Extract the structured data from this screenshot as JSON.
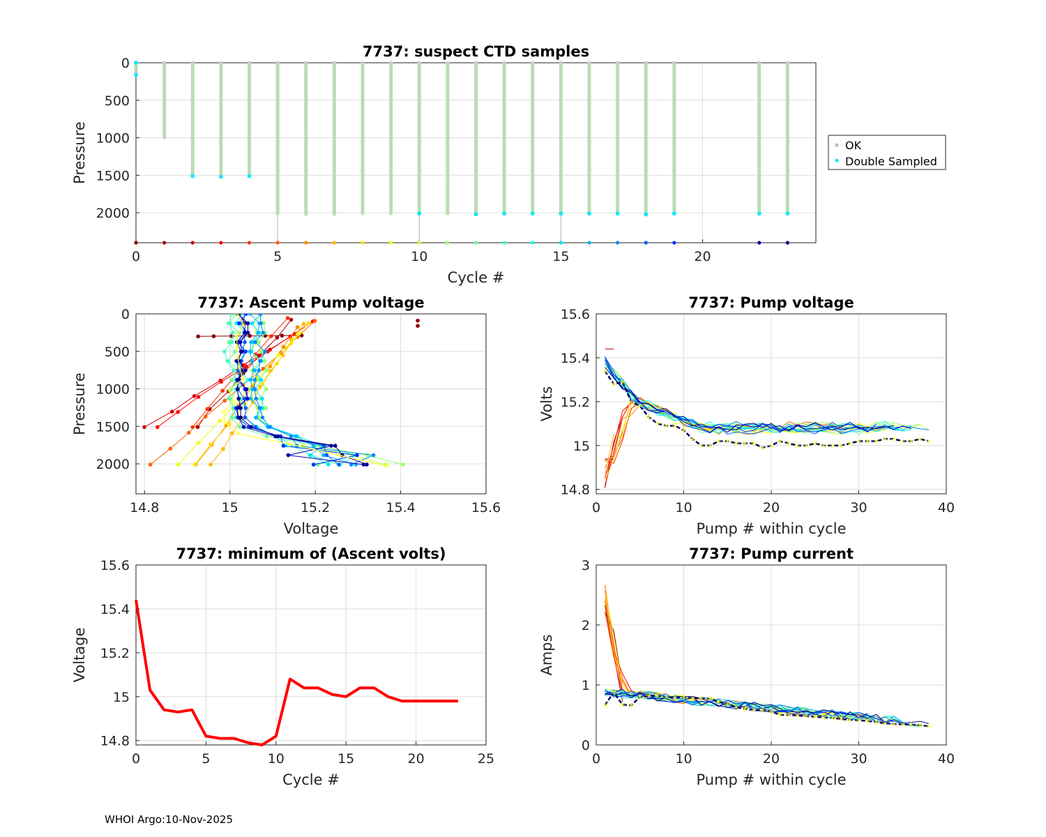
{
  "footer": "WHOI Argo:10-Nov-2025",
  "colors": {
    "ok": "#bcdcb4",
    "double": "#19e6ff",
    "grid": "#dcdcdc",
    "axis": "#262626",
    "min_line": "#ff0000",
    "highlight": "#ffff33"
  },
  "chart_data": [
    {
      "id": "ctd",
      "type": "scatter",
      "title": "7737: suspect CTD samples",
      "xlabel": "Cycle #",
      "ylabel": "Pressure",
      "xlim": [
        0,
        24
      ],
      "ylim": [
        0,
        2400
      ],
      "y_reversed": true,
      "xticks": [
        0,
        5,
        10,
        15,
        20
      ],
      "yticks": [
        0,
        500,
        1000,
        1500,
        2000
      ],
      "legend": {
        "position": "right",
        "entries": [
          "OK",
          "Double Sampled"
        ]
      },
      "profiles": [
        {
          "cycle": 0,
          "pmax": 160,
          "double": [
            160
          ]
        },
        {
          "cycle": 1,
          "pmax": 1000,
          "double": []
        },
        {
          "cycle": 2,
          "pmax": 1510,
          "double": [
            1510
          ]
        },
        {
          "cycle": 3,
          "pmax": 1520,
          "double": [
            1520
          ]
        },
        {
          "cycle": 4,
          "pmax": 1510,
          "double": [
            1510
          ]
        },
        {
          "cycle": 5,
          "pmax": 2010,
          "double": []
        },
        {
          "cycle": 6,
          "pmax": 2020,
          "double": []
        },
        {
          "cycle": 7,
          "pmax": 2020,
          "double": []
        },
        {
          "cycle": 8,
          "pmax": 2010,
          "double": []
        },
        {
          "cycle": 9,
          "pmax": 2010,
          "double": []
        },
        {
          "cycle": 10,
          "pmax": 2010,
          "double": [
            2010
          ]
        },
        {
          "cycle": 11,
          "pmax": 2010,
          "double": []
        },
        {
          "cycle": 12,
          "pmax": 2020,
          "double": [
            2020
          ]
        },
        {
          "cycle": 13,
          "pmax": 2010,
          "double": [
            2010
          ]
        },
        {
          "cycle": 14,
          "pmax": 2010,
          "double": [
            2010
          ]
        },
        {
          "cycle": 15,
          "pmax": 2020,
          "double": [
            2010
          ]
        },
        {
          "cycle": 16,
          "pmax": 2010,
          "double": [
            2010
          ]
        },
        {
          "cycle": 17,
          "pmax": 2010,
          "double": [
            2010
          ]
        },
        {
          "cycle": 18,
          "pmax": 2030,
          "double": [
            2020
          ]
        },
        {
          "cycle": 19,
          "pmax": 2010,
          "double": [
            2010
          ]
        },
        {
          "cycle": 22,
          "pmax": 2010,
          "double": [
            2010
          ]
        },
        {
          "cycle": 23,
          "pmax": 2010,
          "double": [
            2010
          ]
        }
      ],
      "bottom_markers_p": 2400,
      "stems": [
        5,
        10,
        15
      ]
    },
    {
      "id": "ascent",
      "type": "line",
      "title": "7737: Ascent Pump voltage",
      "xlabel": "Voltage",
      "ylabel": "Pressure",
      "xlim": [
        14.78,
        15.6
      ],
      "ylim": [
        0,
        2400
      ],
      "y_reversed": true,
      "xticks": [
        14.8,
        15,
        15.2,
        15.4,
        15.6
      ],
      "yticks": [
        0,
        500,
        1000,
        1500,
        2000
      ],
      "outlier_points": [
        [
          15.44,
          90
        ],
        [
          15.44,
          160
        ]
      ]
    },
    {
      "id": "pumpv",
      "type": "line",
      "title": "7737: Pump voltage",
      "xlabel": "Pump # within cycle",
      "ylabel": "Volts",
      "xlim": [
        0,
        40
      ],
      "ylim": [
        14.78,
        15.6
      ],
      "xticks": [
        0,
        10,
        20,
        30,
        40
      ],
      "yticks": [
        14.8,
        15,
        15.2,
        15.4,
        15.6
      ],
      "ytick_labels": [
        "14.8",
        "15",
        "15.2",
        "15.4",
        "15.6"
      ],
      "highlight_series": [
        15.34,
        15.28,
        15.29,
        15.2,
        15.18,
        15.13,
        15.1,
        15.09,
        15.09,
        15.07,
        15.03,
        15.0,
        15.0,
        15.02,
        15.02,
        15.01,
        15.01,
        15.01,
        14.99,
        15.0,
        15.02,
        15.01,
        15.0,
        15.0,
        15.01,
        15.0,
        15.0,
        15.0,
        15.01,
        15.02,
        15.02,
        15.02,
        15.03,
        15.03,
        15.02,
        15.02,
        15.03,
        15.02
      ]
    },
    {
      "id": "minv",
      "type": "line",
      "title": "7737: minimum of (Ascent volts)",
      "xlabel": "Cycle #",
      "ylabel": "Voltage",
      "xlim": [
        0,
        25
      ],
      "ylim": [
        14.78,
        15.6
      ],
      "xticks": [
        0,
        5,
        10,
        15,
        20,
        25
      ],
      "yticks": [
        14.8,
        15,
        15.2,
        15.4,
        15.6
      ],
      "ytick_labels": [
        "14.8",
        "15",
        "15.2",
        "15.4",
        "15.6"
      ],
      "x": [
        0,
        1,
        2,
        3,
        4,
        5,
        6,
        7,
        8,
        9,
        10,
        11,
        12,
        13,
        14,
        15,
        16,
        17,
        18,
        19,
        20,
        21,
        22,
        23
      ],
      "values": [
        15.44,
        15.03,
        14.94,
        14.93,
        14.94,
        14.82,
        14.81,
        14.81,
        14.79,
        14.78,
        14.82,
        15.08,
        15.04,
        15.04,
        15.01,
        15.0,
        15.04,
        15.04,
        15.0,
        14.98,
        14.98,
        14.98,
        14.98,
        14.98
      ]
    },
    {
      "id": "pumpi",
      "type": "line",
      "title": "7737: Pump current",
      "xlabel": "Pump # within cycle",
      "ylabel": "Amps",
      "xlim": [
        0,
        40
      ],
      "ylim": [
        0,
        3
      ],
      "xticks": [
        0,
        10,
        20,
        30,
        40
      ],
      "yticks": [
        0,
        1,
        2,
        3
      ],
      "highlight_series": [
        0.66,
        0.88,
        0.67,
        0.66,
        0.8,
        0.82,
        0.82,
        0.8,
        0.79,
        0.79,
        0.78,
        0.78,
        0.77,
        0.72,
        0.68,
        0.63,
        0.6,
        0.58,
        0.58,
        0.56,
        0.5,
        0.5,
        0.49,
        0.48,
        0.47,
        0.46,
        0.45,
        0.43,
        0.42,
        0.41,
        0.4,
        0.38,
        0.36,
        0.35,
        0.34,
        0.34,
        0.33,
        0.31
      ]
    }
  ]
}
